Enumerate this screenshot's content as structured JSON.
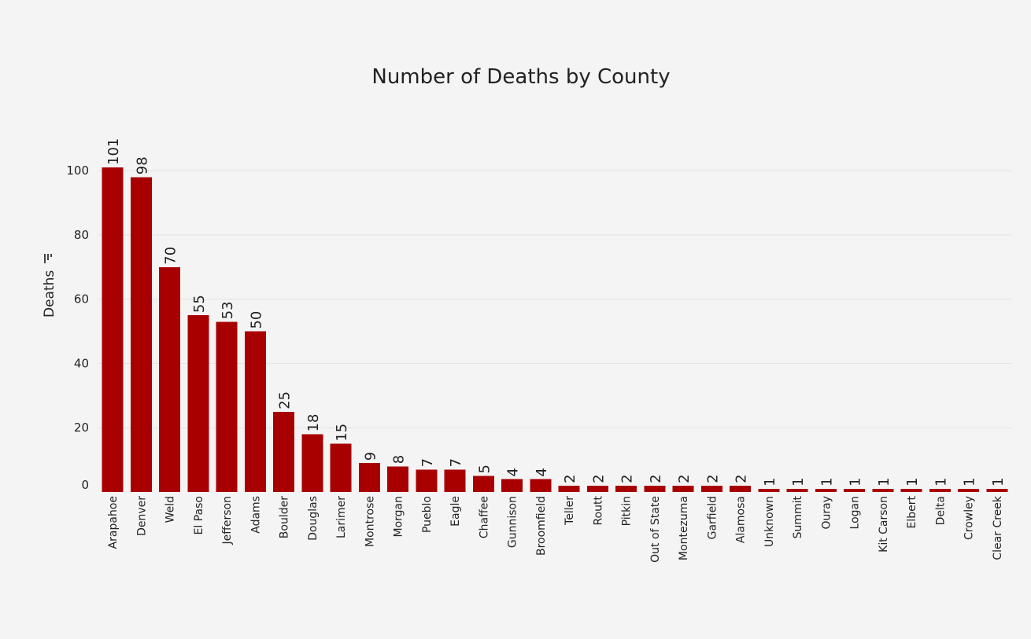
{
  "chart_data": {
    "type": "bar",
    "title": "Number of Deaths by County",
    "xlabel": "",
    "ylabel": "Deaths",
    "ylim": [
      0,
      112
    ],
    "yticks": [
      0,
      20,
      40,
      60,
      80,
      100
    ],
    "grid": true,
    "bar_color": "#a80000",
    "sort_icon": "sort-descending-icon",
    "categories": [
      "Arapahoe",
      "Denver",
      "Weld",
      "El Paso",
      "Jefferson",
      "Adams",
      "Boulder",
      "Douglas",
      "Larimer",
      "Montrose",
      "Morgan",
      "Pueblo",
      "Eagle",
      "Chaffee",
      "Gunnison",
      "Broomfield",
      "Teller",
      "Routt",
      "Pitkin",
      "Out of State",
      "Montezuma",
      "Garfield",
      "Alamosa",
      "Unknown",
      "Summit",
      "Ouray",
      "Logan",
      "Kit Carson",
      "Elbert",
      "Delta",
      "Crowley",
      "Clear Creek"
    ],
    "values": [
      101,
      98,
      70,
      55,
      53,
      50,
      25,
      18,
      15,
      9,
      8,
      7,
      7,
      5,
      4,
      4,
      2,
      2,
      2,
      2,
      2,
      2,
      2,
      1,
      1,
      1,
      1,
      1,
      1,
      1,
      1,
      1
    ]
  }
}
